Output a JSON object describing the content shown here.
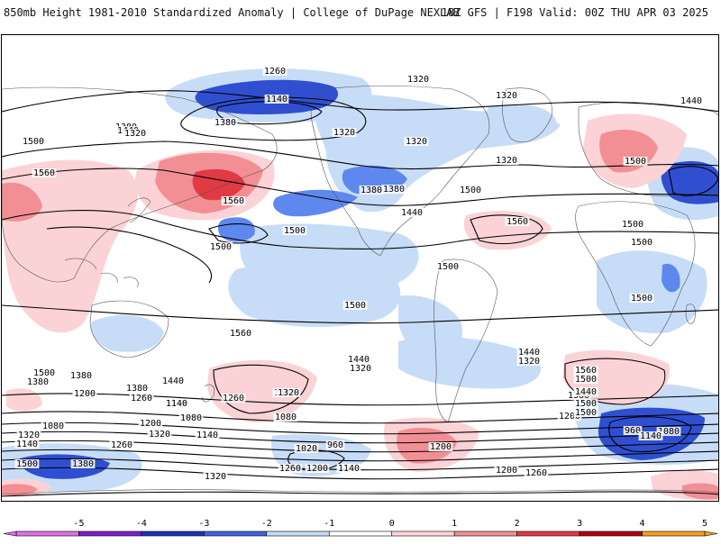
{
  "header": {
    "title_left": "850mb Height 1981-2010 Standardized Anomaly | College of DuPage NEXLAB",
    "title_right": "18Z GFS | F198 Valid: 00Z THU APR 03 2025"
  },
  "colorbar": {
    "ticks": [
      "-5",
      "-4",
      "-3",
      "-2",
      "-1",
      "0",
      "1",
      "2",
      "3",
      "4",
      "5"
    ],
    "colors": [
      "#e070e8",
      "#7b20c8",
      "#1f33b8",
      "#3f62e0",
      "#c7dcf7",
      "#ffffff",
      "#ffd6d9",
      "#f28f95",
      "#e03a45",
      "#b00010",
      "#f5a020"
    ]
  },
  "map": {
    "anomaly_colors": {
      "neg1": "#c7dcf7",
      "neg2": "#5e88ee",
      "neg3": "#2f4fd0",
      "pos1": "#fbd3d6",
      "pos2": "#f28f95",
      "pos3": "#e03a45"
    },
    "contour_labels": [
      {
        "text": "1260"
      },
      {
        "text": "1140"
      },
      {
        "text": "1320"
      },
      {
        "text": "1320"
      },
      {
        "text": "1440"
      },
      {
        "text": "1380"
      },
      {
        "text": "1380"
      },
      {
        "text": "1320"
      },
      {
        "text": "1440"
      },
      {
        "text": "1500"
      },
      {
        "text": "1320"
      },
      {
        "text": "1320"
      },
      {
        "text": "1320"
      },
      {
        "text": "1380"
      },
      {
        "text": "1500"
      },
      {
        "text": "1560"
      },
      {
        "text": "1560"
      },
      {
        "text": "1500"
      },
      {
        "text": "1380"
      },
      {
        "text": "1500"
      },
      {
        "text": "1440"
      },
      {
        "text": "1560"
      },
      {
        "text": "1500"
      },
      {
        "text": "1500"
      },
      {
        "text": "1500"
      },
      {
        "text": "1500"
      },
      {
        "text": "1500"
      },
      {
        "text": "1500"
      },
      {
        "text": "1560"
      },
      {
        "text": "1440"
      },
      {
        "text": "1320"
      },
      {
        "text": "1500"
      },
      {
        "text": "1380"
      },
      {
        "text": "1440"
      },
      {
        "text": "1380"
      },
      {
        "text": "1260"
      },
      {
        "text": "1320"
      },
      {
        "text": "1200"
      },
      {
        "text": "1140"
      },
      {
        "text": "1500"
      },
      {
        "text": "1380"
      },
      {
        "text": "1200"
      },
      {
        "text": "1440"
      },
      {
        "text": "1320"
      },
      {
        "text": "1560"
      },
      {
        "text": "1500"
      },
      {
        "text": "1380"
      },
      {
        "text": "1200"
      },
      {
        "text": "1260"
      },
      {
        "text": "1140"
      },
      {
        "text": "1080"
      },
      {
        "text": "1080"
      },
      {
        "text": "1080"
      },
      {
        "text": "1200"
      },
      {
        "text": "1320"
      },
      {
        "text": "1140"
      },
      {
        "text": "1260"
      },
      {
        "text": "1140"
      },
      {
        "text": "1320"
      },
      {
        "text": "1500"
      },
      {
        "text": "1380"
      },
      {
        "text": "1020"
      },
      {
        "text": "960"
      },
      {
        "text": "1200"
      },
      {
        "text": "1200"
      },
      {
        "text": "1140"
      },
      {
        "text": "1200"
      },
      {
        "text": "1260"
      },
      {
        "text": "1320"
      },
      {
        "text": "1260"
      },
      {
        "text": "960"
      },
      {
        "text": "1080"
      },
      {
        "text": "1140"
      },
      {
        "text": "1500"
      },
      {
        "text": "1440"
      },
      {
        "text": "1500"
      },
      {
        "text": "1560"
      }
    ]
  }
}
